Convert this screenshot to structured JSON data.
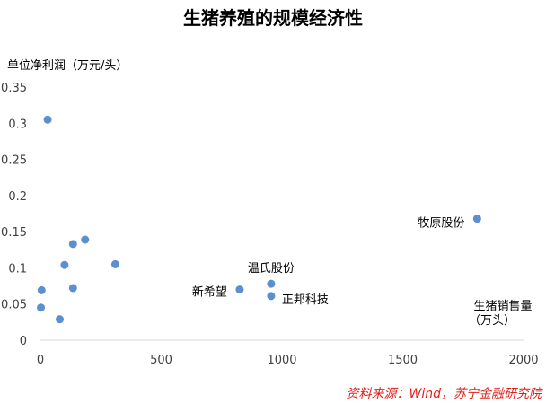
{
  "chart_data": {
    "type": "scatter",
    "title": "生猪养殖的规模经济性",
    "ylabel": "单位净利润（万元/头）",
    "xlabel_lines": [
      "生猪销售量",
      "（万头）"
    ],
    "xlim": [
      0,
      2000
    ],
    "ylim": [
      0,
      0.35
    ],
    "x_ticks": [
      0,
      500,
      1000,
      1500,
      2000
    ],
    "y_ticks": [
      0,
      0.05,
      0.1,
      0.15,
      0.2,
      0.25,
      0.3,
      0.35
    ],
    "y_tick_labels": [
      "0",
      "0.05",
      "0.1",
      "0.15",
      "0.2",
      "0.25",
      "0.3",
      "0.35"
    ],
    "grid": false,
    "marker_color": "#5b8fd0",
    "points": [
      {
        "x": 30,
        "y": 0.305,
        "label": ""
      },
      {
        "x": 5,
        "y": 0.069,
        "label": ""
      },
      {
        "x": 2,
        "y": 0.045,
        "label": ""
      },
      {
        "x": 80,
        "y": 0.029,
        "label": ""
      },
      {
        "x": 100,
        "y": 0.104,
        "label": ""
      },
      {
        "x": 135,
        "y": 0.072,
        "label": ""
      },
      {
        "x": 135,
        "y": 0.133,
        "label": ""
      },
      {
        "x": 185,
        "y": 0.139,
        "label": ""
      },
      {
        "x": 310,
        "y": 0.105,
        "label": ""
      },
      {
        "x": 825,
        "y": 0.07,
        "label": "新希望"
      },
      {
        "x": 955,
        "y": 0.078,
        "label": "温氏股份"
      },
      {
        "x": 955,
        "y": 0.061,
        "label": "正邦科技"
      },
      {
        "x": 1808,
        "y": 0.168,
        "label": "牧原股份"
      }
    ],
    "source": "资料来源：Wind，苏宁金融研究院"
  }
}
